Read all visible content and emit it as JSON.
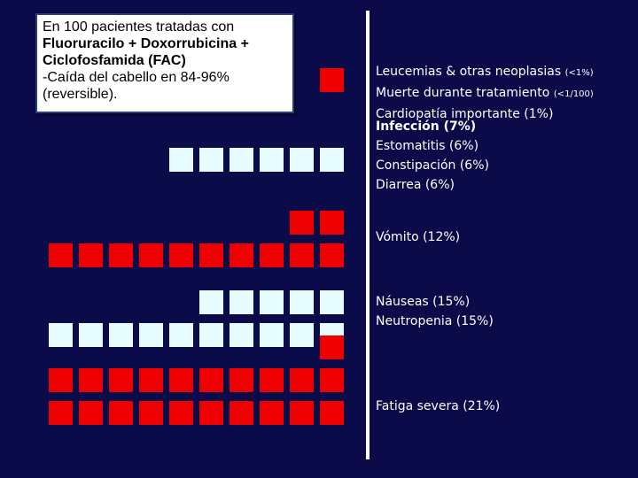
{
  "colors": {
    "background": "#0b0b4a",
    "red_square": "#ee0000",
    "white_square": "#e6fcff",
    "divider": "#ffffff"
  },
  "infobox": {
    "line1": "En 100 pacientes tratadas con",
    "line2": "Fluoruracilo + Doxorrubicina +",
    "line3": "Ciclofosfamida (FAC)",
    "line4": "-Caída del cabello en 84-96%",
    "line5": "(reversible)."
  },
  "groups": [
    {
      "labels": [
        {
          "text": "Leucemias & otras neoplasias ",
          "small": "(<1%)"
        },
        {
          "text": "Muerte durante tratamiento ",
          "small": "(<1/100)"
        },
        {
          "text": "Cardiopatía importante (1%)",
          "small": ""
        }
      ],
      "squares": {
        "color": "red",
        "count": 1
      }
    },
    {
      "labels": [
        {
          "text": "Infección (7%)"
        },
        {
          "text": "Estomatitis (6%)"
        },
        {
          "text": "Constipación (6%)"
        },
        {
          "text": "Diarrea (6%)"
        }
      ],
      "squares": {
        "color": "white",
        "count": 6
      }
    },
    {
      "labels": [
        {
          "text": "Vómito (12%)"
        }
      ],
      "squares": {
        "color": "red",
        "count": 12
      }
    },
    {
      "labels": [
        {
          "text": "Náuseas (15%)"
        },
        {
          "text": "Neutropenia (15%)"
        }
      ],
      "squares": {
        "color": "white",
        "count": 15
      }
    },
    {
      "labels": [
        {
          "text": "Fatiga severa (21%)"
        }
      ],
      "squares": {
        "color": "red",
        "count": 21
      }
    }
  ]
}
